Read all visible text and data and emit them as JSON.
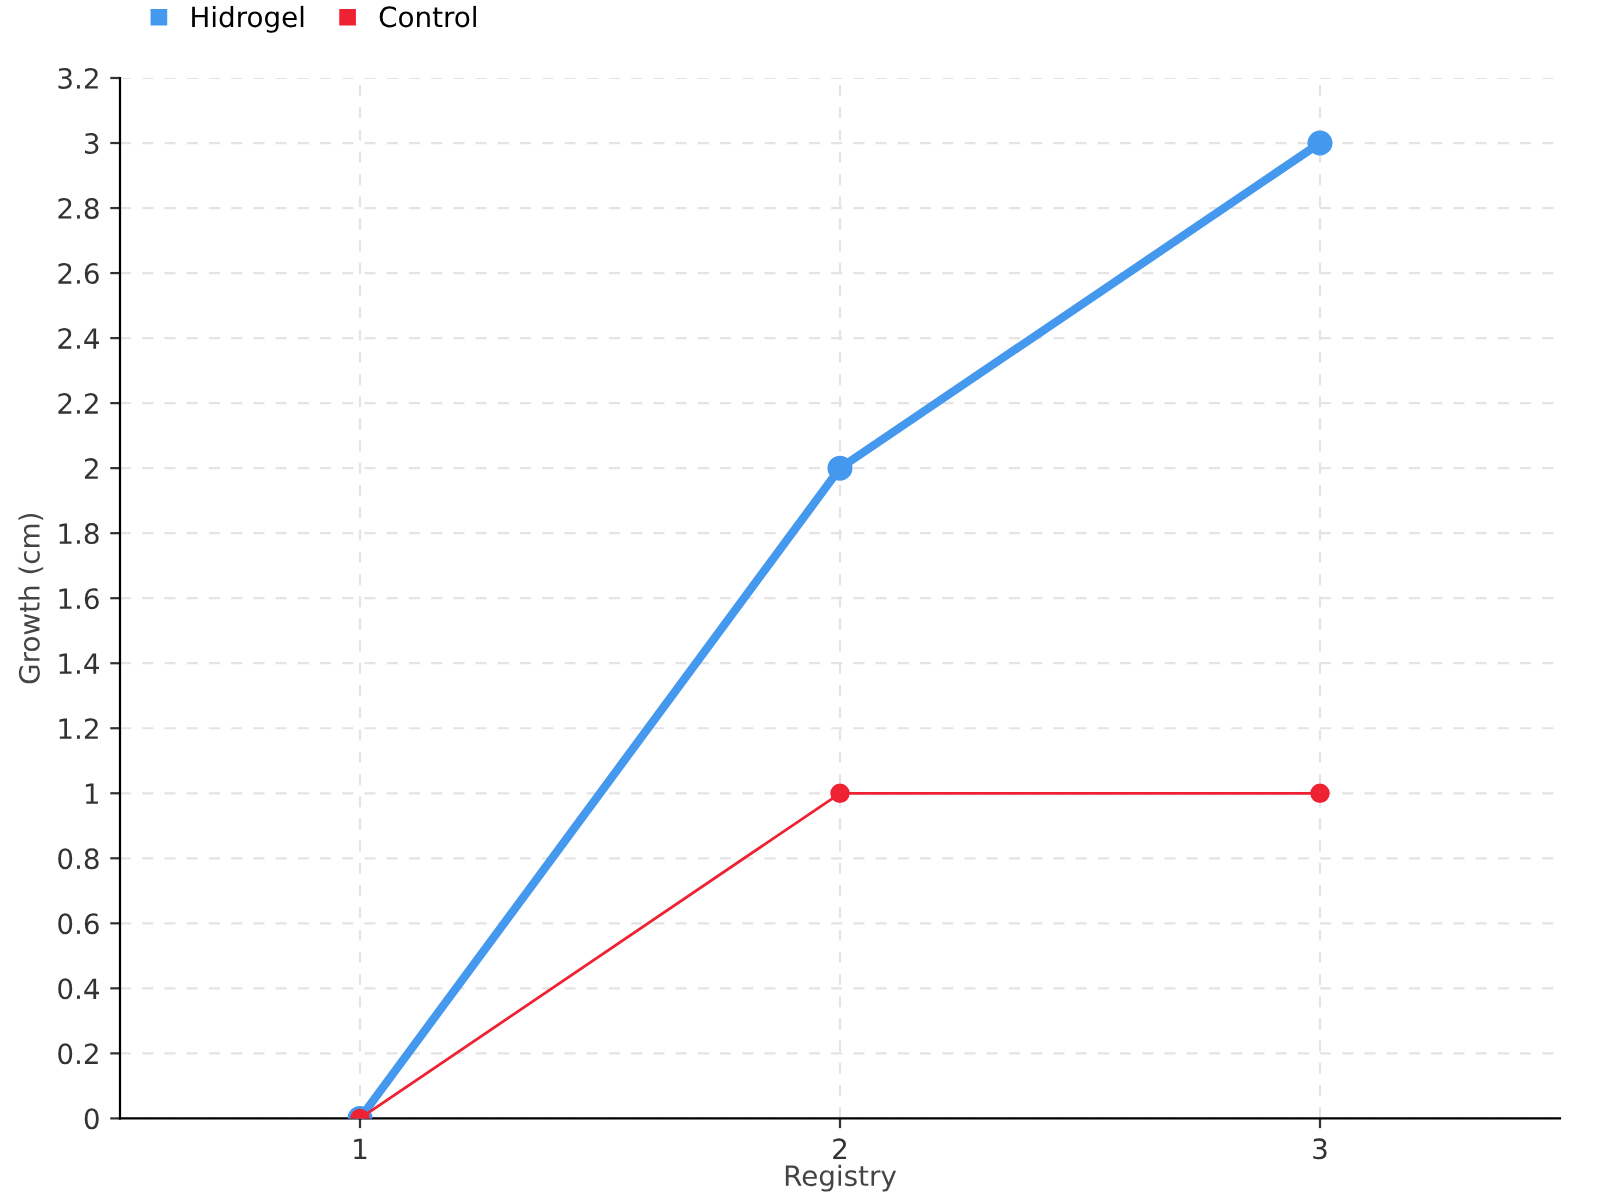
{
  "chart_data": {
    "type": "line",
    "xlabel": "Registry",
    "ylabel": "Growth (cm)",
    "categories": [
      "1",
      "2",
      "3"
    ],
    "series": [
      {
        "name": "Hidrogel",
        "color": "#4499ee",
        "values": [
          0,
          2,
          3
        ]
      },
      {
        "name": "Control",
        "color": "#ee2233",
        "values": [
          0,
          1,
          1
        ]
      }
    ],
    "ylim": [
      0,
      3.2
    ],
    "yticks": [
      0,
      0.2,
      0.4,
      0.6,
      0.8,
      1,
      1.2,
      1.4,
      1.6,
      1.8,
      2,
      2.2,
      2.4,
      2.6,
      2.8,
      3,
      3.2
    ],
    "grid": true,
    "legend": "top left",
    "marker": "circle",
    "line_style": "solid"
  }
}
